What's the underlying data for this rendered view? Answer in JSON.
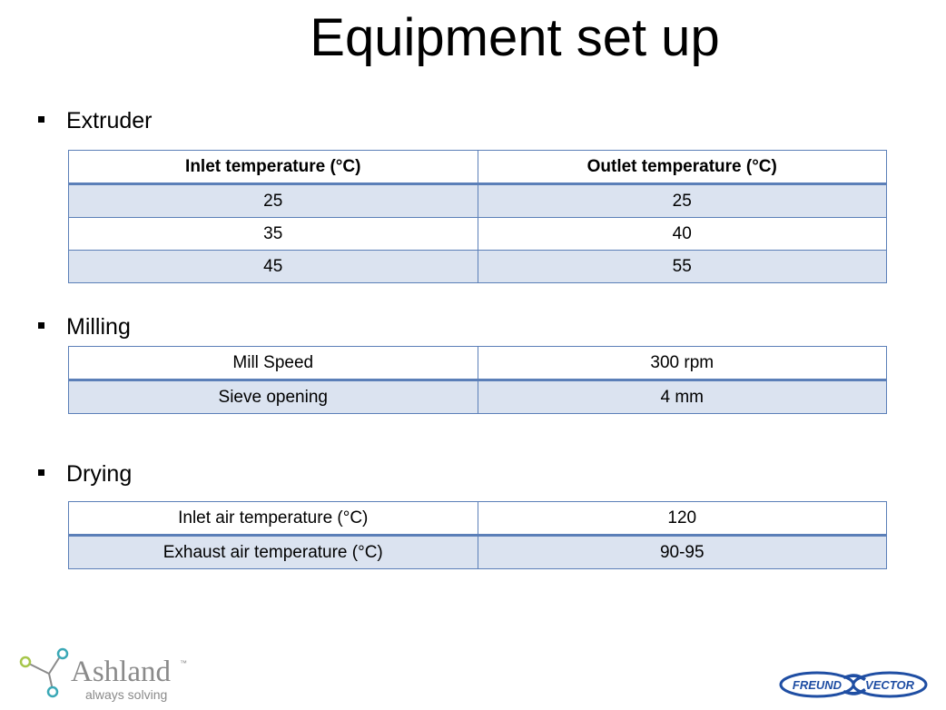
{
  "title": "Equipment set up",
  "sections": {
    "extruder": {
      "heading": "Extruder",
      "headers": [
        "Inlet temperature (°C)",
        "Outlet temperature (°C)"
      ],
      "rows": [
        [
          "25",
          "25"
        ],
        [
          "35",
          "40"
        ],
        [
          "45",
          "55"
        ]
      ]
    },
    "milling": {
      "heading": "Milling",
      "rows": [
        [
          "Mill Speed",
          "300 rpm"
        ],
        [
          "Sieve opening",
          "4 mm"
        ]
      ]
    },
    "drying": {
      "heading": "Drying",
      "rows": [
        [
          "Inlet air temperature (°C)",
          "120"
        ],
        [
          "Exhaust air temperature (°C)",
          "90-95"
        ]
      ]
    }
  },
  "logos": {
    "ashland": {
      "name": "Ashland",
      "tagline": "always solving",
      "trademark": "™"
    },
    "freund_vector": {
      "left": "FREUND",
      "right": "VECTOR"
    }
  },
  "colors": {
    "table_border": "#5b7fb8",
    "table_shade": "#dbe3f0",
    "logo_blue": "#1f4ea3",
    "ashland_green": "#a6c64a",
    "ashland_teal": "#3aa8b6"
  }
}
